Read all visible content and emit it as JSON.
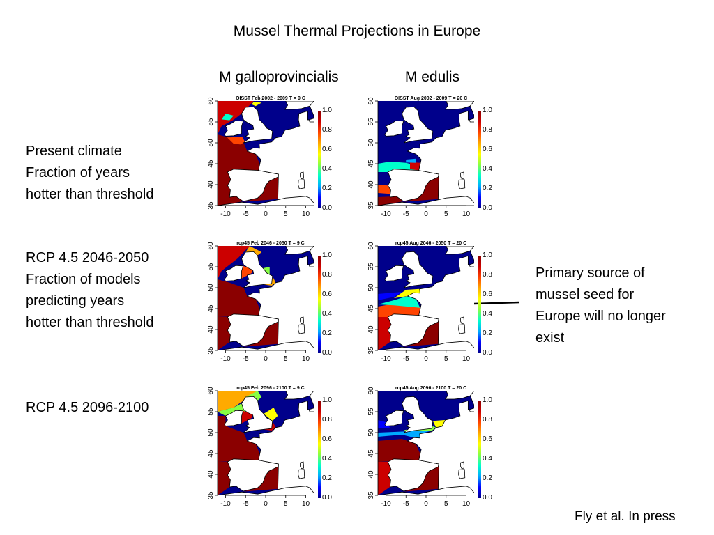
{
  "slide": {
    "title": "Mussel Thermal Projections in Europe",
    "columns": [
      "M galloprovincialis",
      "M edulis"
    ],
    "rows": [
      {
        "lines": [
          "Present climate",
          "Fraction of years",
          "hotter than threshold"
        ]
      },
      {
        "lines": [
          "RCP 4.5  2046-2050",
          "Fraction of models",
          "predicting years",
          "hotter than threshold"
        ]
      },
      {
        "lines": [
          "RCP 4.5 2096-2100"
        ]
      }
    ],
    "annotation": [
      "Primary source of",
      "mussel seed for",
      "Europe will no longer",
      "exist"
    ],
    "credit": "Fly et al.  In press"
  },
  "panels": [
    {
      "title": "OISST Feb 2002 - 2009 T = 9 C",
      "scenario": "present-feb"
    },
    {
      "title": "OISST Aug 2002 - 2009 T = 20 C",
      "scenario": "present-aug"
    },
    {
      "title": "rcp45 Feb 2046 - 2050 T = 9 C",
      "scenario": "mid-feb"
    },
    {
      "title": "rcp45 Aug 2046 - 2050 T = 20 C",
      "scenario": "mid-aug"
    },
    {
      "title": "rcp45 Feb 2096 - 2100 T = 9 C",
      "scenario": "end-feb"
    },
    {
      "title": "rcp45 Aug 2096 - 2100 T = 20 C",
      "scenario": "end-aug"
    }
  ],
  "axes": {
    "x_ticks": [
      "-10",
      "-5",
      "0",
      "5",
      "10"
    ],
    "y_ticks": [
      "35",
      "40",
      "45",
      "50",
      "55",
      "60"
    ],
    "colorbar_ticks": [
      "0.0",
      "0.2",
      "0.4",
      "0.6",
      "0.8",
      "1.0"
    ]
  },
  "colors": {
    "high": "#8b0000",
    "low": "#00008b",
    "land": "#ffffff",
    "colorbar_stops": [
      "#00008b",
      "#0000ff",
      "#00aaff",
      "#00ffcc",
      "#88ff44",
      "#ffff00",
      "#ffaa00",
      "#ff4400",
      "#cc0000",
      "#8b0000"
    ]
  }
}
